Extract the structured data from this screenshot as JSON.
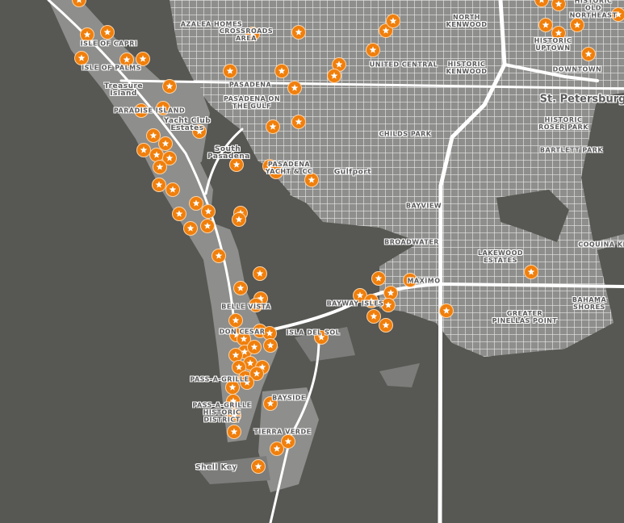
{
  "map": {
    "colors": {
      "water": "#575753",
      "land": "#8e8e8c",
      "road": "#ffffff",
      "marker": "#f07f0c"
    },
    "marker_icon": "star-icon",
    "labels": {
      "isle_of_capri": "Isle of Capri",
      "isle_of_palms": "Isle of Palms",
      "treasure_island": "Treasure Island",
      "paradise_island": "Paradise Island",
      "yacht_club_estates": "Yacht Club Estates",
      "azalea_homes": "Azalea Homes",
      "crossroads_area": "Crossroads Area",
      "pasadena": "Pasadena",
      "pasadena_on_the_gulf": "Pasadena on the Gulf",
      "south_pasadena": "South Pasadena",
      "pasadena_yacht_cc": "Pasadena Yacht & CC",
      "gulfport": "Gulfport",
      "childs_park": "Childs Park",
      "united_central": "United Central",
      "historic_kenwood": "Historic Kenwood",
      "north_kenwood": "North Kenwood",
      "historic_uptown": "Historic Uptown",
      "historic_old_northeast": "Historic Old Northeast",
      "st_petersburg": "St. Petersburg",
      "downtown": "Downtown",
      "historic_roser_park": "Historic Roser Park",
      "bartlett_park": "Bartlett Park",
      "bayview": "Bayview",
      "broadwater": "Broadwater",
      "maximo": "Maximo",
      "lakewood_estates": "Lakewood Estates",
      "greater_pinellas_point": "Greater Pinellas Point",
      "bahama_shores": "Bahama Shores",
      "coquina_key": "Coquina Key",
      "bayway_isles": "Bayway Isles",
      "isla_del_sol": "Isla Del Sol",
      "belle_vista": "Belle Vista",
      "don_cesar": "Don CeSar",
      "pass_a_grille": "Pass-a-Grille",
      "pass_a_grille_historic": "Pass-a-Grille Historic District",
      "tierra_verde": "Tierra Verde",
      "bayside": "Bayside",
      "shell_key": "Shell Key"
    }
  }
}
